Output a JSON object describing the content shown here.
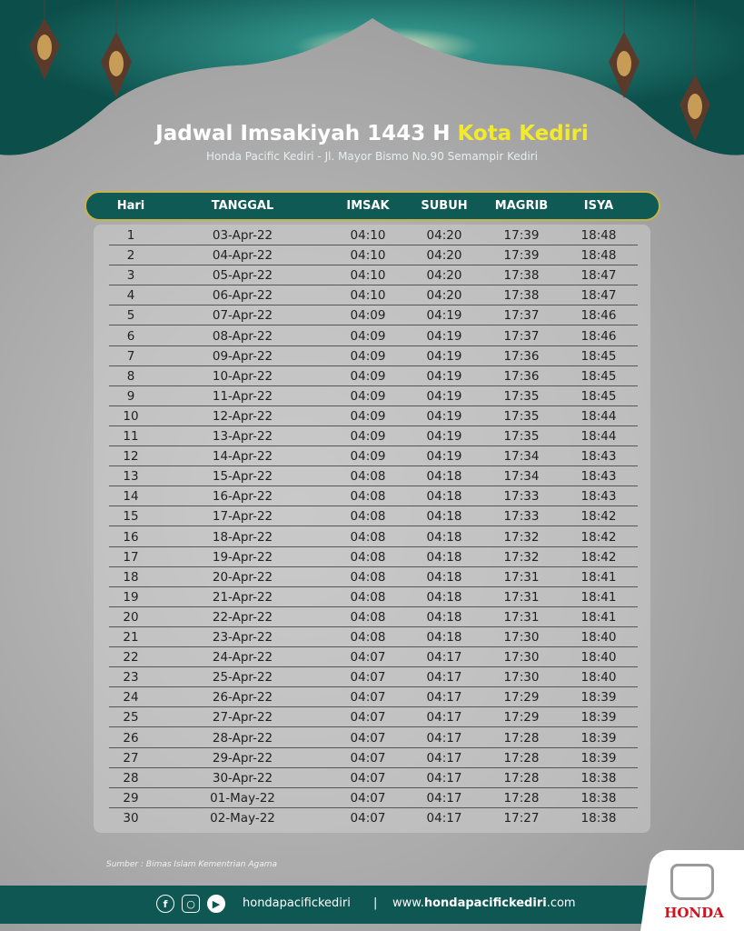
{
  "title": {
    "main": "Jadwal Imsakiyah 1443 H",
    "highlight": "Kota Kediri",
    "subtitle": "Honda Pacific Kediri - Jl. Mayor Bismo No.90 Semampir Kediri"
  },
  "colors": {
    "teal": "#0e5752",
    "accent_yellow": "#f3ea2a",
    "gold": "#c9b24a",
    "honda_red": "#d3121b"
  },
  "table": {
    "headers": [
      "Hari",
      "TANGGAL",
      "IMSAK",
      "SUBUH",
      "MAGRIB",
      "ISYA"
    ],
    "rows": [
      [
        "1",
        "03-Apr-22",
        "04:10",
        "04:20",
        "17:39",
        "18:48"
      ],
      [
        "2",
        "04-Apr-22",
        "04:10",
        "04:20",
        "17:39",
        "18:48"
      ],
      [
        "3",
        "05-Apr-22",
        "04:10",
        "04:20",
        "17:38",
        "18:47"
      ],
      [
        "4",
        "06-Apr-22",
        "04:10",
        "04:20",
        "17:38",
        "18:47"
      ],
      [
        "5",
        "07-Apr-22",
        "04:09",
        "04:19",
        "17:37",
        "18:46"
      ],
      [
        "6",
        "08-Apr-22",
        "04:09",
        "04:19",
        "17:37",
        "18:46"
      ],
      [
        "7",
        "09-Apr-22",
        "04:09",
        "04:19",
        "17:36",
        "18:45"
      ],
      [
        "8",
        "10-Apr-22",
        "04:09",
        "04:19",
        "17:36",
        "18:45"
      ],
      [
        "9",
        "11-Apr-22",
        "04:09",
        "04:19",
        "17:35",
        "18:45"
      ],
      [
        "10",
        "12-Apr-22",
        "04:09",
        "04:19",
        "17:35",
        "18:44"
      ],
      [
        "11",
        "13-Apr-22",
        "04:09",
        "04:19",
        "17:35",
        "18:44"
      ],
      [
        "12",
        "14-Apr-22",
        "04:09",
        "04:19",
        "17:34",
        "18:43"
      ],
      [
        "13",
        "15-Apr-22",
        "04:08",
        "04:18",
        "17:34",
        "18:43"
      ],
      [
        "14",
        "16-Apr-22",
        "04:08",
        "04:18",
        "17:33",
        "18:43"
      ],
      [
        "15",
        "17-Apr-22",
        "04:08",
        "04:18",
        "17:33",
        "18:42"
      ],
      [
        "16",
        "18-Apr-22",
        "04:08",
        "04:18",
        "17:32",
        "18:42"
      ],
      [
        "17",
        "19-Apr-22",
        "04:08",
        "04:18",
        "17:32",
        "18:42"
      ],
      [
        "18",
        "20-Apr-22",
        "04:08",
        "04:18",
        "17:31",
        "18:41"
      ],
      [
        "19",
        "21-Apr-22",
        "04:08",
        "04:18",
        "17:31",
        "18:41"
      ],
      [
        "20",
        "22-Apr-22",
        "04:08",
        "04:18",
        "17:31",
        "18:41"
      ],
      [
        "21",
        "23-Apr-22",
        "04:08",
        "04:18",
        "17:30",
        "18:40"
      ],
      [
        "22",
        "24-Apr-22",
        "04:07",
        "04:17",
        "17:30",
        "18:40"
      ],
      [
        "23",
        "25-Apr-22",
        "04:07",
        "04:17",
        "17:30",
        "18:40"
      ],
      [
        "24",
        "26-Apr-22",
        "04:07",
        "04:17",
        "17:29",
        "18:39"
      ],
      [
        "25",
        "27-Apr-22",
        "04:07",
        "04:17",
        "17:29",
        "18:39"
      ],
      [
        "26",
        "28-Apr-22",
        "04:07",
        "04:17",
        "17:28",
        "18:39"
      ],
      [
        "27",
        "29-Apr-22",
        "04:07",
        "04:17",
        "17:28",
        "18:39"
      ],
      [
        "28",
        "30-Apr-22",
        "04:07",
        "04:17",
        "17:28",
        "18:38"
      ],
      [
        "29",
        "01-May-22",
        "04:07",
        "04:17",
        "17:28",
        "18:38"
      ],
      [
        "30",
        "02-May-22",
        "04:07",
        "04:17",
        "17:27",
        "18:38"
      ]
    ]
  },
  "source": "Sumber : Bimas Islam Kementrian Agama",
  "footer": {
    "social_icons": [
      "facebook-icon",
      "instagram-icon",
      "youtube-icon"
    ],
    "handle": "hondapacifickediri",
    "separator": "|",
    "web_prefix": "www.",
    "web_bold": "hondapacifickediri",
    "web_suffix": ".com"
  },
  "brand": {
    "logo_text": "HONDA"
  }
}
